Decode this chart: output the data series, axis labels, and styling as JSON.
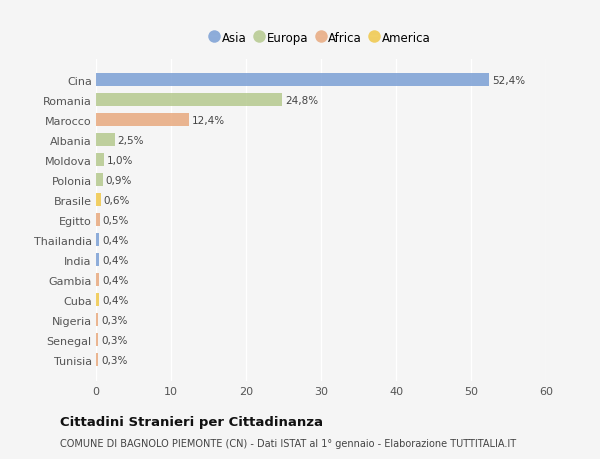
{
  "countries": [
    "Cina",
    "Romania",
    "Marocco",
    "Albania",
    "Moldova",
    "Polonia",
    "Brasile",
    "Egitto",
    "Thailandia",
    "India",
    "Gambia",
    "Cuba",
    "Nigeria",
    "Senegal",
    "Tunisia"
  ],
  "values": [
    52.4,
    24.8,
    12.4,
    2.5,
    1.0,
    0.9,
    0.6,
    0.5,
    0.4,
    0.4,
    0.4,
    0.4,
    0.3,
    0.3,
    0.3
  ],
  "labels": [
    "52,4%",
    "24,8%",
    "12,4%",
    "2,5%",
    "1,0%",
    "0,9%",
    "0,6%",
    "0,5%",
    "0,4%",
    "0,4%",
    "0,4%",
    "0,4%",
    "0,3%",
    "0,3%",
    "0,3%"
  ],
  "continents": [
    "Asia",
    "Europa",
    "Africa",
    "Europa",
    "Europa",
    "Europa",
    "America",
    "Africa",
    "Asia",
    "Asia",
    "Africa",
    "America",
    "Africa",
    "Africa",
    "Africa"
  ],
  "continent_colors": {
    "Asia": "#7b9fd4",
    "Europa": "#b5c98e",
    "Africa": "#e8a97e",
    "America": "#f0c84a"
  },
  "legend_order": [
    "Asia",
    "Europa",
    "Africa",
    "America"
  ],
  "background_color": "#f5f5f5",
  "title": "Cittadini Stranieri per Cittadinanza",
  "subtitle": "COMUNE DI BAGNOLO PIEMONTE (CN) - Dati ISTAT al 1° gennaio - Elaborazione TUTTITALIA.IT",
  "xlim": [
    0,
    60
  ],
  "xticks": [
    0,
    10,
    20,
    30,
    40,
    50,
    60
  ]
}
